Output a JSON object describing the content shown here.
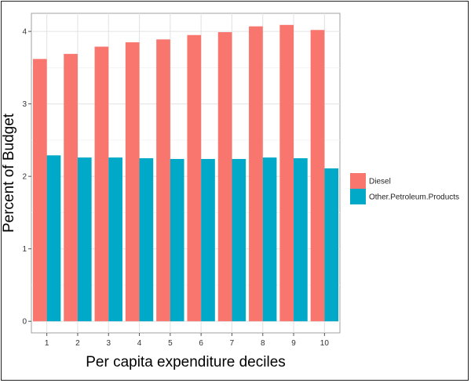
{
  "chart_data": {
    "type": "bar",
    "title": "",
    "xlabel": "Per capita expenditure deciles",
    "ylabel": "Percent of Budget",
    "categories": [
      "1",
      "2",
      "3",
      "4",
      "5",
      "6",
      "7",
      "8",
      "9",
      "10"
    ],
    "series": [
      {
        "name": "Diesel",
        "color": "#f8766d",
        "values": [
          3.62,
          3.69,
          3.79,
          3.85,
          3.89,
          3.95,
          3.99,
          4.07,
          4.09,
          4.02
        ]
      },
      {
        "name": "Other.Petroleum.Products",
        "color": "#00a9c8",
        "values": [
          2.29,
          2.26,
          2.26,
          2.25,
          2.24,
          2.24,
          2.24,
          2.26,
          2.25,
          2.11
        ]
      }
    ],
    "yticks": [
      0,
      1,
      2,
      3,
      4
    ],
    "ylim": [
      -0.16,
      4.25
    ],
    "grid": true,
    "legend": "right"
  }
}
